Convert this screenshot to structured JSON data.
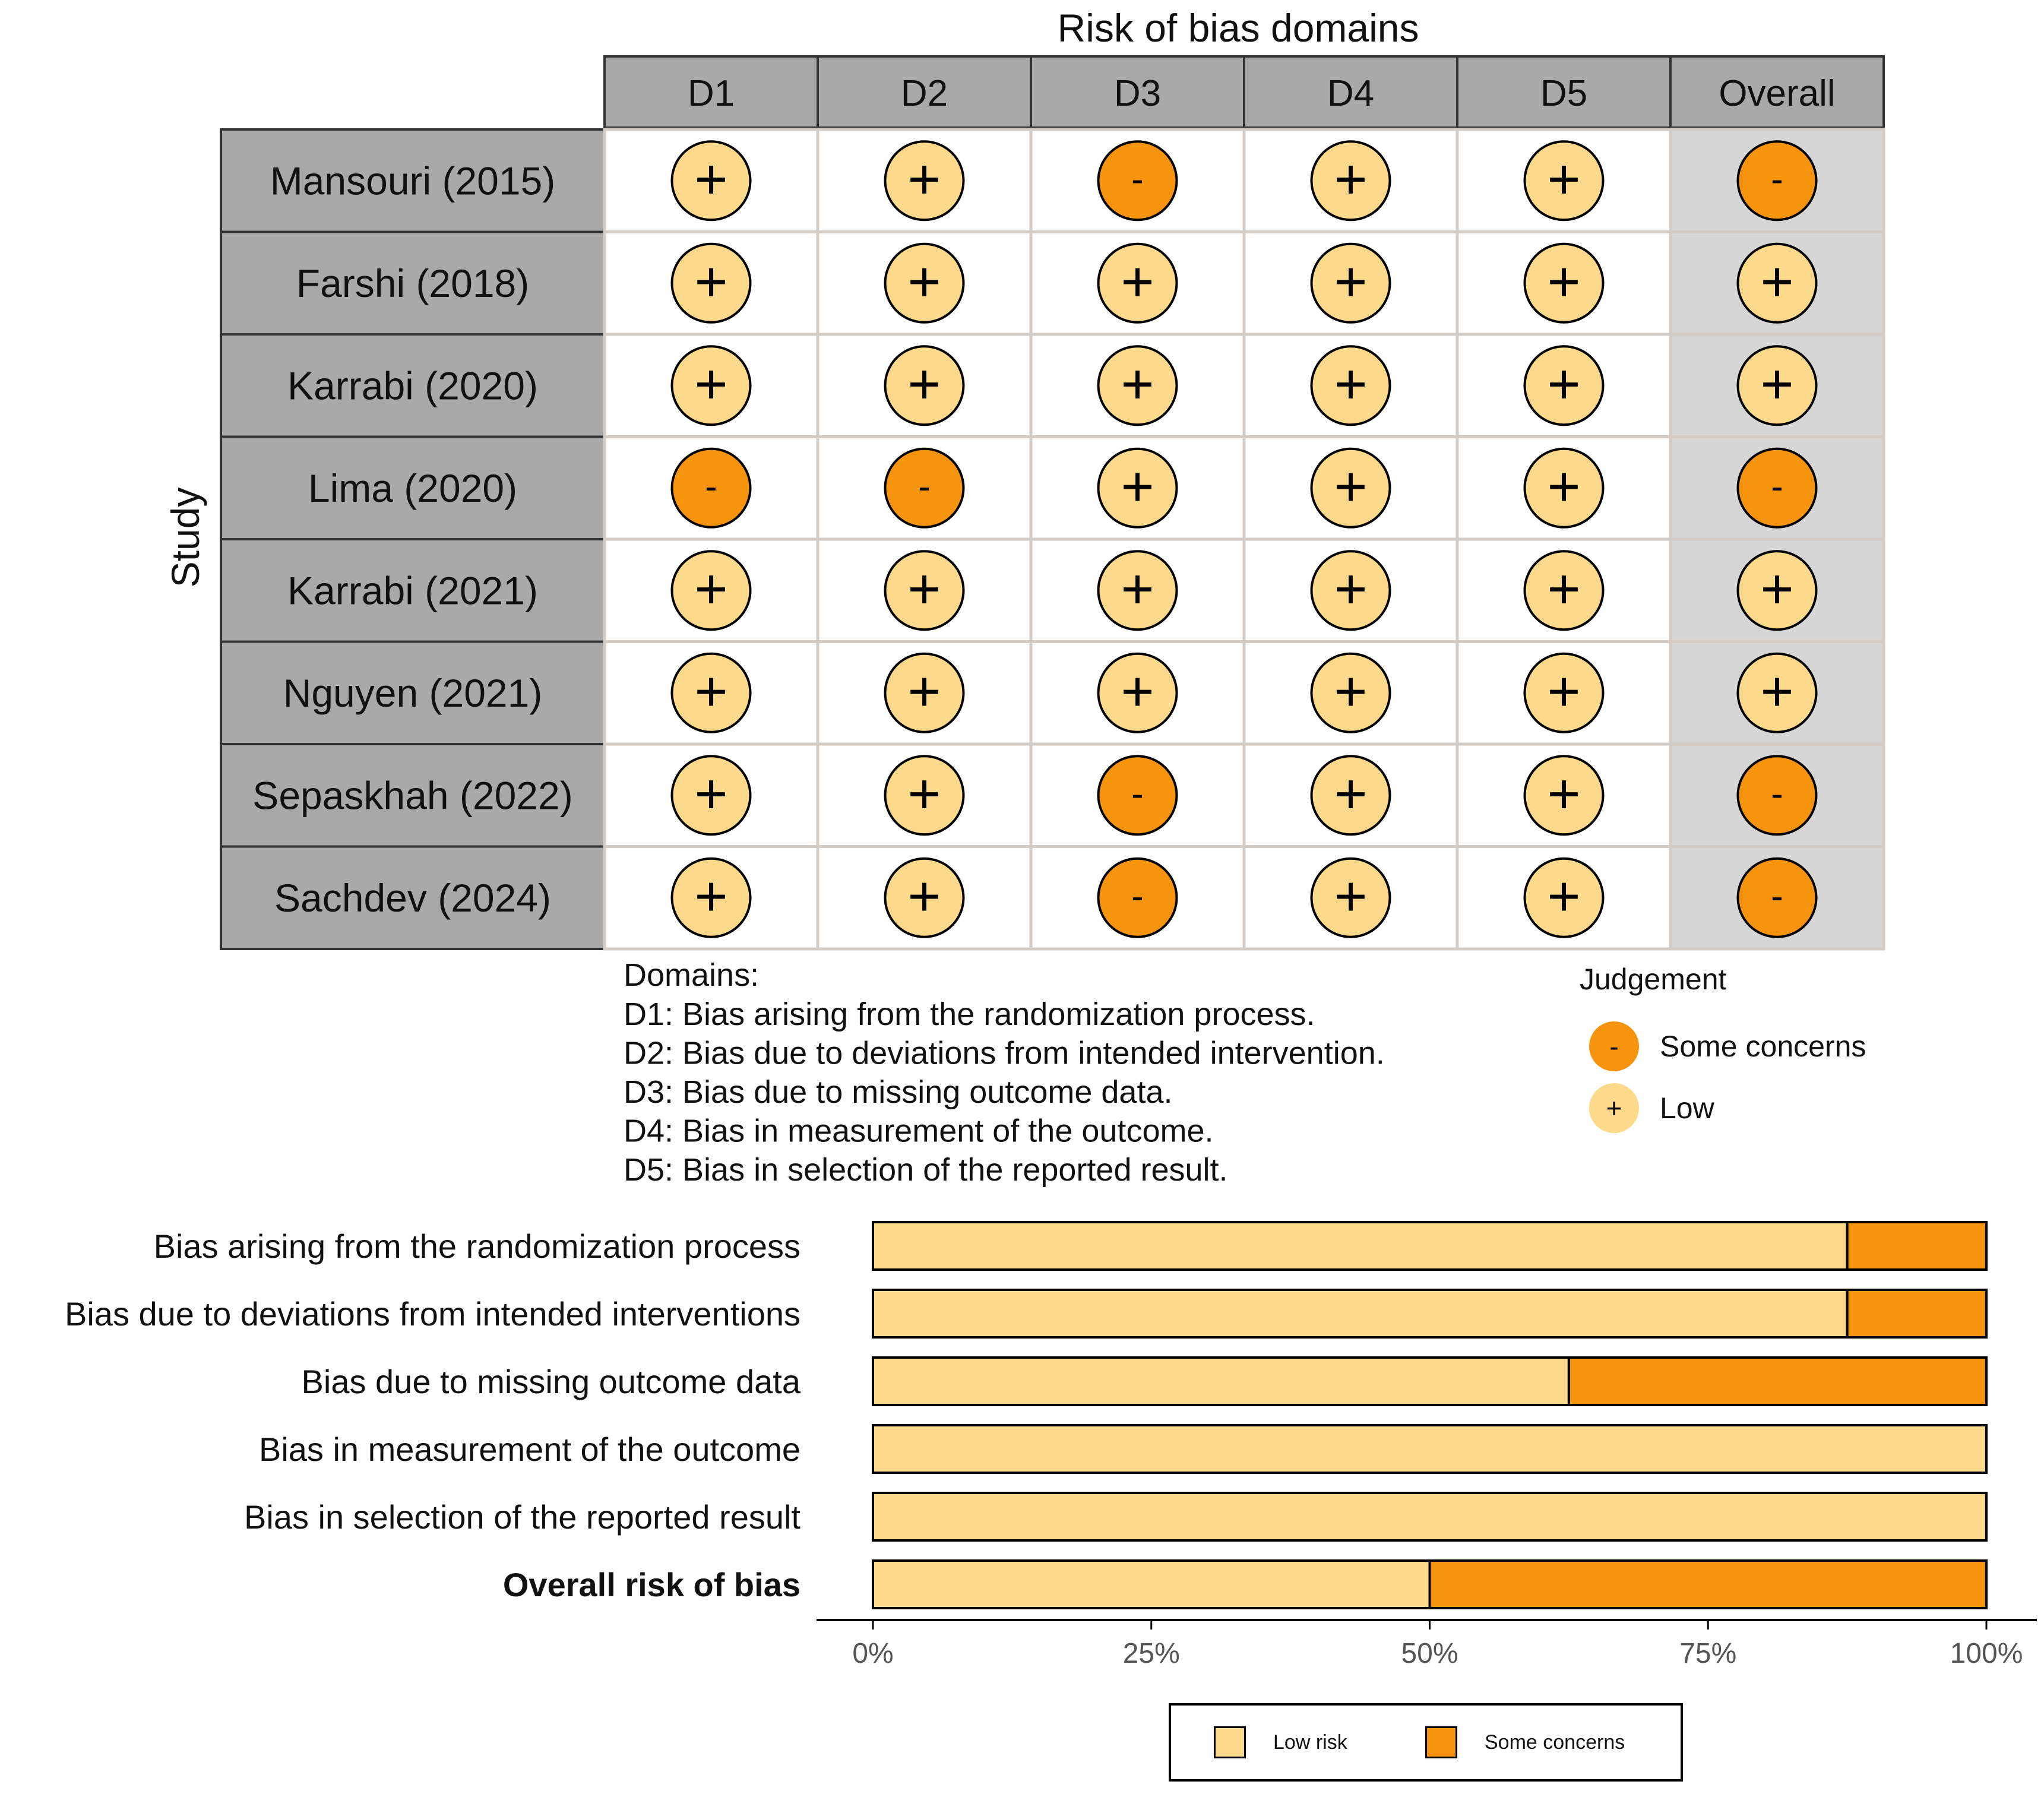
{
  "chart_data": [
    {
      "type": "table",
      "title": "Risk of bias domains",
      "ylabel": "Study",
      "columns": [
        "D1",
        "D2",
        "D3",
        "D4",
        "D5",
        "Overall"
      ],
      "studies": [
        {
          "name": "Mansouri (2015)",
          "judgements": [
            "Low",
            "Low",
            "Some concerns",
            "Low",
            "Low",
            "Some concerns"
          ]
        },
        {
          "name": "Farshi (2018)",
          "judgements": [
            "Low",
            "Low",
            "Low",
            "Low",
            "Low",
            "Low"
          ]
        },
        {
          "name": "Karrabi (2020)",
          "judgements": [
            "Low",
            "Low",
            "Low",
            "Low",
            "Low",
            "Low"
          ]
        },
        {
          "name": "Lima (2020)",
          "judgements": [
            "Some concerns",
            "Some concerns",
            "Low",
            "Low",
            "Low",
            "Some concerns"
          ]
        },
        {
          "name": "Karrabi (2021)",
          "judgements": [
            "Low",
            "Low",
            "Low",
            "Low",
            "Low",
            "Low"
          ]
        },
        {
          "name": "Nguyen (2021)",
          "judgements": [
            "Low",
            "Low",
            "Low",
            "Low",
            "Low",
            "Low"
          ]
        },
        {
          "name": "Sepaskhah (2022)",
          "judgements": [
            "Low",
            "Low",
            "Some concerns",
            "Low",
            "Low",
            "Some concerns"
          ]
        },
        {
          "name": "Sachdev (2024)",
          "judgements": [
            "Low",
            "Low",
            "Some concerns",
            "Low",
            "Low",
            "Some concerns"
          ]
        }
      ],
      "domains_note": {
        "heading": "Domains:",
        "lines": [
          "D1: Bias arising from the randomization process.",
          "D2: Bias due to deviations from intended intervention.",
          "D3: Bias due to missing outcome data.",
          "D4: Bias in measurement of the outcome.",
          "D5: Bias in selection of the reported result."
        ]
      },
      "judgement_legend": {
        "title": "Judgement",
        "items": [
          {
            "label": "Some concerns",
            "symbol": "-",
            "color": "#f7940d"
          },
          {
            "label": "Low",
            "symbol": "+",
            "color": "#fdd98c"
          }
        ]
      }
    },
    {
      "type": "bar",
      "orientation": "horizontal",
      "stacked": true,
      "categories": [
        "Bias arising from the randomization process",
        "Bias due to deviations from intended interventions",
        "Bias due to missing outcome data",
        "Bias in measurement of the outcome",
        "Bias in selection of the reported result",
        "Overall risk of bias"
      ],
      "bold_category": "Overall risk of bias",
      "series": [
        {
          "name": "Low risk",
          "color": "#fdd98c",
          "values": [
            87.5,
            87.5,
            62.5,
            100,
            100,
            50
          ]
        },
        {
          "name": "Some concerns",
          "color": "#f7940d",
          "values": [
            12.5,
            12.5,
            37.5,
            0,
            0,
            50
          ]
        }
      ],
      "xlim": [
        0,
        100
      ],
      "xticks": [
        "0%",
        "25%",
        "50%",
        "75%",
        "100%"
      ],
      "legend": {
        "position": "bottom",
        "items": [
          "Low risk",
          "Some concerns"
        ]
      }
    }
  ],
  "colors": {
    "low": "#fdd98c",
    "some_concerns": "#f7940d",
    "header_fill": "#a9a9a9",
    "overall_fill": "#d6d6d6"
  }
}
